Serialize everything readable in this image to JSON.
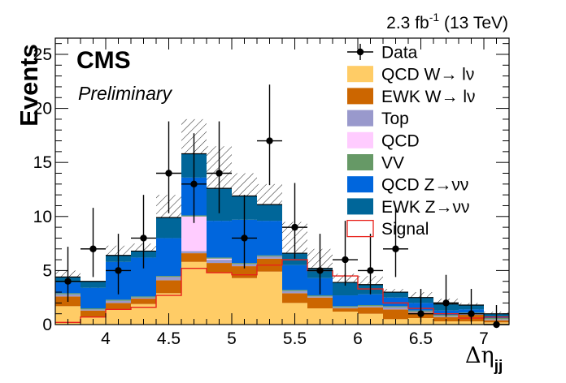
{
  "header": {
    "lumi": "2.3 fb",
    "lumi_sup": "-1",
    "energy": " (13 TeV)"
  },
  "cms_label": "CMS",
  "preliminary_label": "Preliminary",
  "chart_data": {
    "type": "bar",
    "stacked": true,
    "xlabel": "Δη",
    "xlabel_sub": "jj",
    "ylabel": "Events",
    "xlim": [
      3.6,
      7.2
    ],
    "ylim": [
      0,
      26.5
    ],
    "x_ticks": [
      "4",
      "4.5",
      "5",
      "5.5",
      "6",
      "6.5",
      "7"
    ],
    "y_ticks": [
      "0",
      "5",
      "10",
      "15",
      "20",
      "25"
    ],
    "bin_edges": [
      3.6,
      3.8,
      4.0,
      4.2,
      4.4,
      4.6,
      4.8,
      5.0,
      5.2,
      5.4,
      5.6,
      5.8,
      6.0,
      6.2,
      6.4,
      6.6,
      6.8,
      7.0,
      7.2
    ],
    "series": [
      {
        "name": "QCD W→ lν",
        "color": "#ffcc66",
        "values": [
          1.7,
          0.7,
          1.4,
          1.9,
          2.9,
          5.8,
          4.8,
          4.3,
          4.9,
          2.0,
          1.5,
          1.2,
          1.0,
          0.5,
          0.6,
          0.3,
          0.3,
          0.2
        ]
      },
      {
        "name": "EWK W→ lν",
        "color": "#cc6600",
        "values": [
          0.9,
          0.6,
          0.6,
          0.5,
          1.2,
          0.8,
          0.9,
          1.1,
          1.2,
          0.9,
          1.0,
          0.3,
          0.6,
          0.9,
          0.5,
          0.4,
          0.6,
          0.2
        ]
      },
      {
        "name": "Top",
        "color": "#9999cc",
        "values": [
          0.2,
          0.1,
          0.2,
          0.1,
          0.3,
          0.2,
          0.3,
          0.2,
          0.2,
          0.2,
          0.1,
          0.1,
          0.1,
          0.2,
          0.1,
          0.1,
          0.1,
          0.1
        ]
      },
      {
        "name": "QCD",
        "color": "#ffccff",
        "values": [
          0.0,
          0.0,
          0.0,
          0.0,
          0.0,
          3.2,
          0.1,
          0.0,
          0.0,
          0.0,
          0.0,
          0.0,
          0.0,
          0.0,
          0.0,
          0.0,
          0.0,
          0.0
        ]
      },
      {
        "name": "VV",
        "color": "#669966",
        "values": [
          0.1,
          0.1,
          0.1,
          0.1,
          0.1,
          0.1,
          0.1,
          0.1,
          0.1,
          0.1,
          0.1,
          0.1,
          0.1,
          0.1,
          0.1,
          0.1,
          0.1,
          0.1
        ]
      },
      {
        "name": "QCD Z→νν",
        "color": "#0066dd",
        "values": [
          1.0,
          1.9,
          3.5,
          3.6,
          3.5,
          3.5,
          3.4,
          4.0,
          3.2,
          2.3,
          1.6,
          1.0,
          1.0,
          0.8,
          0.7,
          0.4,
          0.3,
          0.1
        ]
      },
      {
        "name": "EWK Z→νν",
        "color": "#006699",
        "values": [
          0.5,
          0.6,
          0.6,
          0.6,
          1.9,
          2.2,
          3.0,
          2.2,
          1.5,
          1.1,
          0.9,
          1.2,
          0.9,
          0.5,
          0.5,
          0.6,
          0.4,
          0.3
        ]
      }
    ],
    "signal": {
      "name": "Signal",
      "color": "#e8211a",
      "values": [
        0.2,
        0.7,
        1.4,
        1.6,
        2.7,
        5.2,
        4.8,
        4.6,
        5.5,
        6.0,
        5.0,
        4.5,
        3.3,
        2.0,
        1.5,
        1.0,
        0.6,
        0.7
      ]
    },
    "uncertainty": {
      "name": "",
      "up": [
        5.0,
        4.0,
        7.3,
        7.5,
        12.0,
        19.0,
        16.5,
        14.0,
        13.0,
        9.5,
        7.0,
        4.7,
        4.5,
        3.3,
        3.0,
        2.4,
        2.0,
        1.2
      ],
      "down": [
        3.4,
        2.8,
        5.6,
        6.1,
        7.7,
        12.6,
        8.5,
        9.3,
        9.1,
        5.8,
        4.6,
        3.1,
        2.9,
        1.8,
        1.7,
        1.1,
        1.1,
        0.5
      ]
    },
    "data": {
      "name": "Data",
      "points": [
        {
          "x": 3.7,
          "y": 4,
          "err_up": 3.2,
          "err_down": 1.9
        },
        {
          "x": 3.9,
          "y": 7,
          "err_up": 3.8,
          "err_down": 2.6
        },
        {
          "x": 4.1,
          "y": 5,
          "err_up": 3.4,
          "err_down": 2.2
        },
        {
          "x": 4.3,
          "y": 8,
          "err_up": 4.0,
          "err_down": 2.8
        },
        {
          "x": 4.5,
          "y": 14,
          "err_up": 4.8,
          "err_down": 3.7
        },
        {
          "x": 4.7,
          "y": 13,
          "err_up": 4.7,
          "err_down": 3.6
        },
        {
          "x": 4.9,
          "y": 14,
          "err_up": 4.8,
          "err_down": 3.7
        },
        {
          "x": 5.1,
          "y": 8,
          "err_up": 4.0,
          "err_down": 2.8
        },
        {
          "x": 5.3,
          "y": 17,
          "err_up": 5.2,
          "err_down": 4.1
        },
        {
          "x": 5.5,
          "y": 9,
          "err_up": 4.1,
          "err_down": 2.9
        },
        {
          "x": 5.7,
          "y": 5,
          "err_up": 3.4,
          "err_down": 2.2
        },
        {
          "x": 5.9,
          "y": 6,
          "err_up": 3.6,
          "err_down": 2.4
        },
        {
          "x": 6.1,
          "y": 5,
          "err_up": 3.4,
          "err_down": 2.2
        },
        {
          "x": 6.3,
          "y": 7,
          "err_up": 3.8,
          "err_down": 2.6
        },
        {
          "x": 6.5,
          "y": 1,
          "err_up": 2.3,
          "err_down": 0.8
        },
        {
          "x": 6.7,
          "y": 2,
          "err_up": 2.6,
          "err_down": 1.3
        },
        {
          "x": 6.9,
          "y": 1,
          "err_up": 2.3,
          "err_down": 0.8
        },
        {
          "x": 7.1,
          "y": 0,
          "err_up": 1.8,
          "err_down": 0
        }
      ]
    },
    "legend_position": "top-right"
  }
}
